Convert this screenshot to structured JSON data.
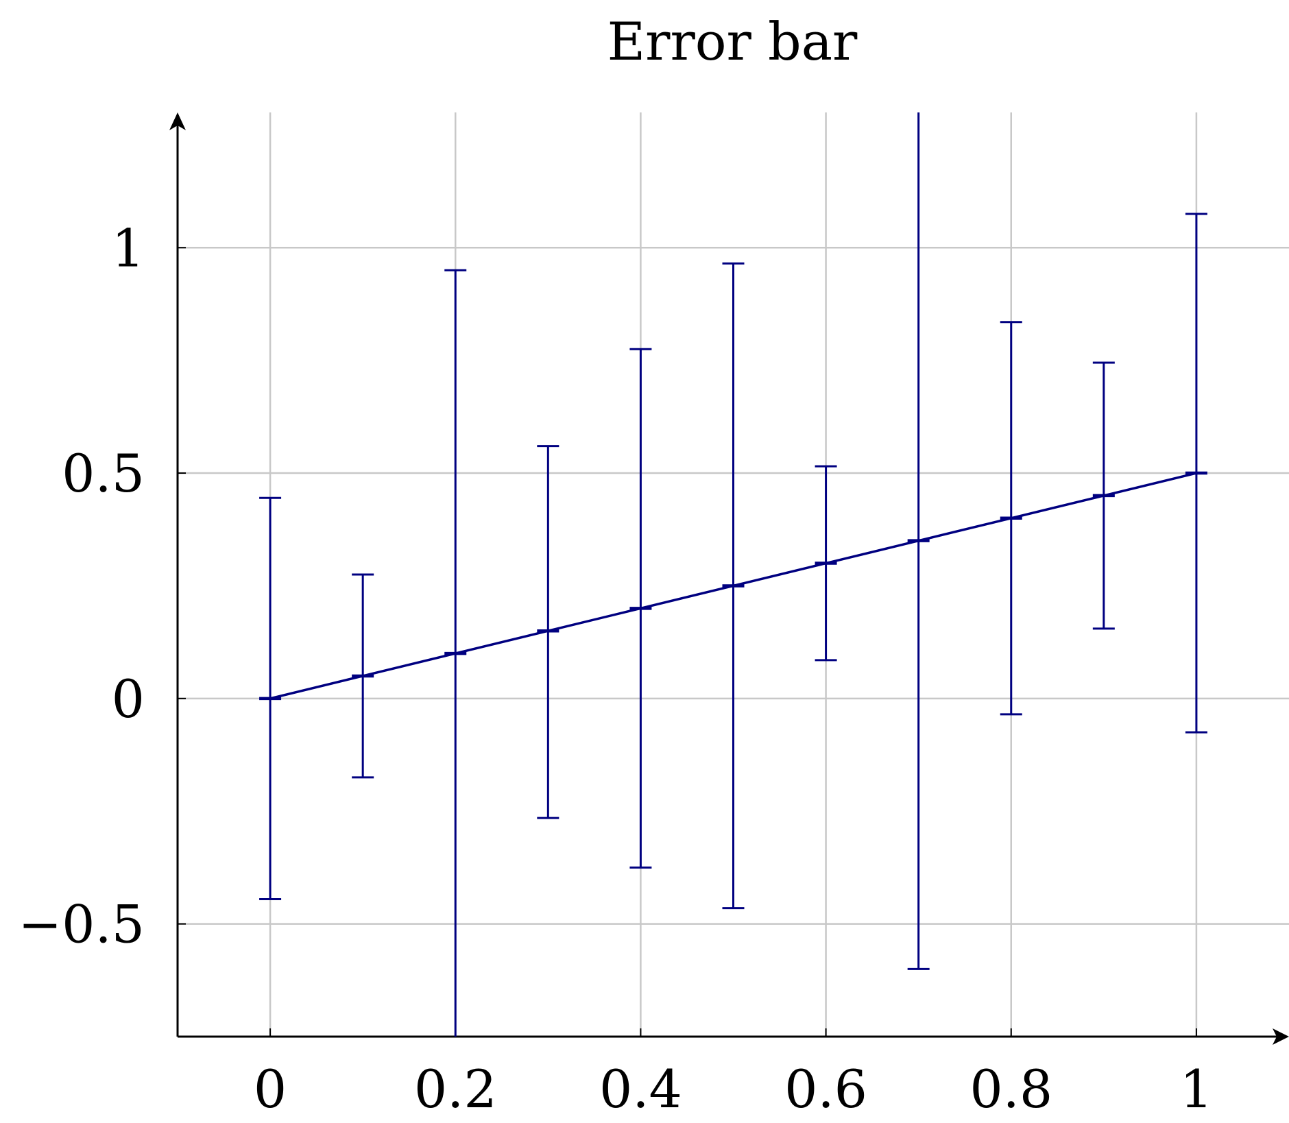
{
  "chart_data": {
    "type": "line",
    "title": "Error bar",
    "xlabel": "",
    "ylabel": "",
    "xlim": [
      -0.1,
      1.1
    ],
    "ylim": [
      -0.75,
      1.3
    ],
    "x_ticks": [
      0,
      0.2,
      0.4,
      0.6,
      0.8,
      1
    ],
    "x_tick_labels": [
      "0",
      "0.2",
      "0.4",
      "0.6",
      "0.8",
      "1"
    ],
    "y_ticks": [
      -0.5,
      0,
      0.5,
      1
    ],
    "y_tick_labels": [
      "−0.5",
      "0",
      "0.5",
      "1"
    ],
    "grid": true,
    "series": [
      {
        "color": "#000080",
        "x": [
          0,
          0.1,
          0.2,
          0.3,
          0.4,
          0.5,
          0.6,
          0.7,
          0.8,
          0.9,
          1.0
        ],
        "y": [
          0,
          0.05,
          0.1,
          0.15,
          0.2,
          0.25,
          0.3,
          0.35,
          0.4,
          0.45,
          0.5
        ],
        "error_upper": [
          0.445,
          0.275,
          0.95,
          0.56,
          0.775,
          0.965,
          0.515,
          1.3,
          0.835,
          0.745,
          1.075
        ],
        "error_lower": [
          -0.445,
          -0.175,
          -0.75,
          -0.265,
          -0.375,
          -0.465,
          0.085,
          -0.6,
          -0.035,
          0.155,
          -0.075
        ]
      }
    ]
  }
}
